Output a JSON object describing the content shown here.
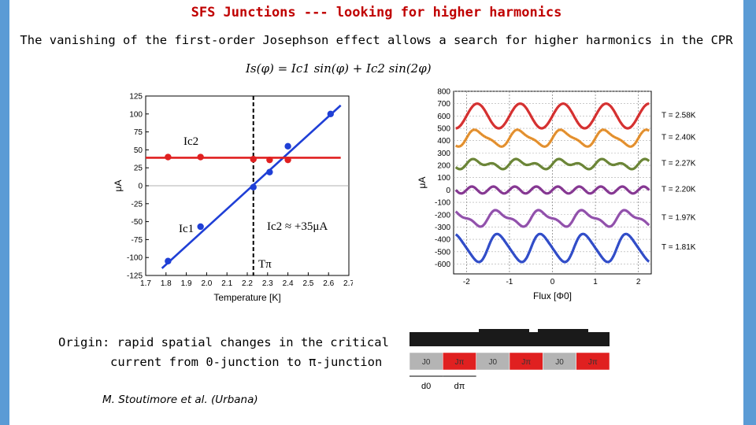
{
  "slide": {
    "title": "SFS Junctions --- looking for higher harmonics",
    "subtitle": "The vanishing of the first-order Josephson effect allows a search for higher harmonics in the CPR",
    "formula": "Is(φ) = Ic1 sin(φ) + Ic2 sin(2φ)",
    "origin_line1": "Origin: rapid spatial changes in the critical",
    "origin_line2": "current from 0-junction to π-junction",
    "citation": "M. Stoutimore et al. (Urbana)"
  },
  "colors": {
    "title": "#c00000",
    "ic1": "#1f3fd6",
    "ic2": "#e02020",
    "background": "#5b9bd5"
  },
  "chart_data": [
    {
      "type": "scatter",
      "xlabel": "Temperature [K]",
      "ylabel": "μA",
      "xlim": [
        1.7,
        2.7
      ],
      "ylim": [
        -125,
        125
      ],
      "xticks": [
        "1.7",
        "1.8",
        "1.9",
        "2.0",
        "2.1",
        "2.2",
        "2.3",
        "2.4",
        "2.5",
        "2.6",
        "2.7"
      ],
      "yticks": [
        "125",
        "100",
        "75",
        "50",
        "25",
        "0",
        "-25",
        "-50",
        "-75",
        "-100",
        "-125"
      ],
      "vline_x": 2.23,
      "annotations": {
        "ic2_label": "Ic2",
        "ic1_label": "Ic1",
        "ic2_value": "Ic2 ≈ +35μA",
        "tpi_label": "Tπ"
      },
      "series": [
        {
          "name": "Ic1",
          "points": [
            [
              1.81,
              -105
            ],
            [
              1.97,
              -57
            ],
            [
              2.23,
              -2
            ],
            [
              2.31,
              19
            ],
            [
              2.4,
              55
            ],
            [
              2.61,
              100
            ]
          ],
          "fit": [
            [
              1.78,
              -115
            ],
            [
              2.66,
              112
            ]
          ]
        },
        {
          "name": "Ic2",
          "points": [
            [
              1.81,
              40
            ],
            [
              1.97,
              40
            ],
            [
              2.23,
              37
            ],
            [
              2.31,
              36
            ],
            [
              2.4,
              36
            ]
          ],
          "fit": [
            [
              1.7,
              39
            ],
            [
              2.66,
              39
            ]
          ]
        }
      ]
    },
    {
      "type": "line",
      "xlabel": "Flux [Φ0]",
      "ylabel": "μA",
      "xlim": [
        -2.3,
        2.3
      ],
      "ylim": [
        -680,
        800
      ],
      "xticks": [
        "-2",
        "-1",
        "0",
        "1",
        "2"
      ],
      "yticks": [
        "800",
        "700",
        "600",
        "500",
        "400",
        "300",
        "200",
        "100",
        "0",
        "-100",
        "-200",
        "-300",
        "-400",
        "-500",
        "-600"
      ],
      "series": [
        {
          "name": "T = 2.58K",
          "color": "#dd1111",
          "offset": 600,
          "amp1": 100,
          "amp2": 0
        },
        {
          "name": "T = 2.40K",
          "color": "#ee8811",
          "offset": 420,
          "amp1": 60,
          "amp2": 18
        },
        {
          "name": "T = 2.27K",
          "color": "#5a7a1a",
          "offset": 210,
          "amp1": 25,
          "amp2": 22
        },
        {
          "name": "T = 2.20K",
          "color": "#7a1a8a",
          "offset": 0,
          "amp1": 0,
          "amp2": 28
        },
        {
          "name": "T = 1.97K",
          "color": "#8a3aaa",
          "offset": -230,
          "amp1": -55,
          "amp2": 22
        },
        {
          "name": "T = 1.81K",
          "color": "#1133cc",
          "offset": -470,
          "amp1": -110,
          "amp2": 15
        }
      ]
    }
  ],
  "junction": {
    "labels": [
      "J0",
      "Jπ",
      "J0",
      "Jπ",
      "J0",
      "Jπ"
    ],
    "colors": [
      "#b4b4b4",
      "#e02020",
      "#b4b4b4",
      "#e02020",
      "#b4b4b4",
      "#e02020"
    ],
    "d0_label": "d0",
    "dpi_label": "dπ"
  }
}
